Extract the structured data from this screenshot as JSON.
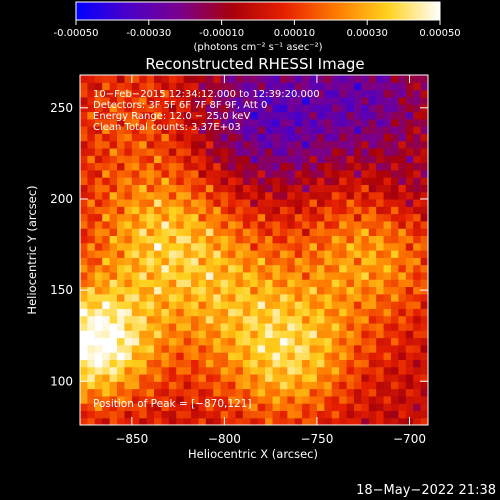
{
  "colorbar": {
    "tick_labels": [
      "-0.00050",
      "-0.00030",
      "-0.00010",
      "0.00010",
      "0.00030",
      "0.00050"
    ],
    "tick_values": [
      -0.0005,
      -0.0003,
      -0.0001,
      0.0001,
      0.0003,
      0.0005
    ],
    "range": [
      -0.0005,
      0.0005
    ],
    "colors": [
      "#0000ff",
      "#4b00c8",
      "#7a008c",
      "#a8000a",
      "#e62000",
      "#ff7a00",
      "#ffd21e",
      "#ffffff"
    ]
  },
  "chart_data": {
    "type": "heatmap",
    "title": "Reconstructed RHESSI Image",
    "xlabel": "Heliocentric X (arcsec)",
    "ylabel": "Heliocentric Y (arcsec)",
    "xlim": [
      -878,
      -690
    ],
    "ylim": [
      76,
      268
    ],
    "x_ticks": [
      -850,
      -800,
      -750,
      -700
    ],
    "y_ticks": [
      100,
      150,
      200,
      250
    ],
    "x_tick_labels": [
      "−850",
      "−800",
      "−750",
      "−700"
    ],
    "y_tick_labels": [
      "100",
      "150",
      "200",
      "250"
    ],
    "colorbar_unit": "(photons cm⁻² s⁻¹ asec⁻²)",
    "info_lines": [
      "10−Feb−2015 12:34:12.000 to 12:39:20.000",
      "Detectors: 3F 5F 6F 7F 8F 9F, Att 0",
      "Energy Range: 12.0 − 25.0 keV",
      "Clean    Total counts: 3.37E+03"
    ],
    "peak_label": "Position of Peak = [−870,121]",
    "peak": [
      -870,
      121
    ],
    "blobs": [
      {
        "x": -870,
        "y": 121,
        "amp": 0.00052,
        "s": 22
      },
      {
        "x": -835,
        "y": 180,
        "amp": 0.0003,
        "s": 28
      },
      {
        "x": -760,
        "y": 110,
        "amp": 0.00034,
        "s": 26
      },
      {
        "x": -720,
        "y": 170,
        "amp": 0.00026,
        "s": 26
      },
      {
        "x": -795,
        "y": 145,
        "amp": 0.00022,
        "s": 30
      },
      {
        "x": -850,
        "y": 245,
        "amp": 0.00012,
        "s": 25
      },
      {
        "x": -775,
        "y": 245,
        "amp": -0.0003,
        "s": 28
      },
      {
        "x": -720,
        "y": 255,
        "amp": -0.00022,
        "s": 22
      },
      {
        "x": -700,
        "y": 205,
        "amp": -0.00012,
        "s": 16
      },
      {
        "x": -740,
        "y": 90,
        "amp": -8e-05,
        "s": 25
      }
    ]
  },
  "footer": {
    "timestamp": "18−May−2022 21:38"
  }
}
